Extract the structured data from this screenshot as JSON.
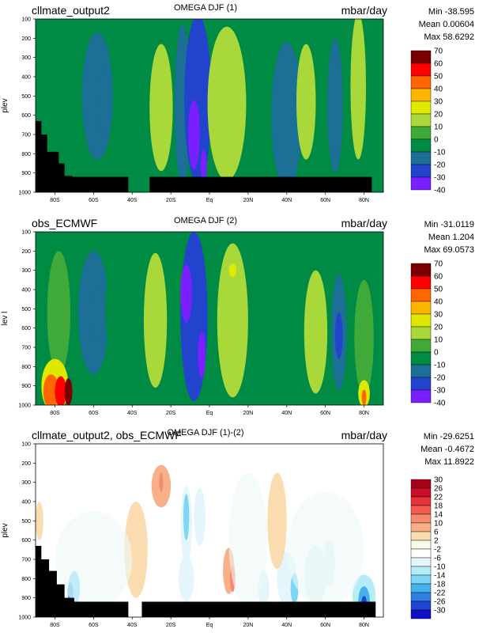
{
  "chart_data": [
    {
      "type": "contour",
      "title": "OMEGA DJF (1)",
      "case_name": "cllmate_output2",
      "units": "mbar/day",
      "stats": {
        "min": "Min -38.595",
        "mean": "Mean 0.00604",
        "max": "Max 58.6292"
      },
      "ylabel": "plev",
      "y_ticks": [
        "100",
        "200",
        "300",
        "400",
        "500",
        "600",
        "700",
        "800",
        "900",
        "1000"
      ],
      "x_ticks": [
        "80S",
        "60S",
        "40S",
        "20S",
        "Eq",
        "20N",
        "40N",
        "60N",
        "80N"
      ],
      "colorbar_levels": [
        "70",
        "60",
        "50",
        "40",
        "30",
        "20",
        "10",
        "0",
        "-10",
        "-20",
        "-30",
        "-40"
      ],
      "colors": [
        "#7a0000",
        "#ff0000",
        "#ff6600",
        "#ffb400",
        "#dfe800",
        "#a8d83a",
        "#3faa3a",
        "#008b45",
        "#1c6f95",
        "#2244cc",
        "#7a1fff"
      ],
      "regions": [
        {
          "band": "80S–70S",
          "value": 0
        },
        {
          "band": "70S–50S",
          "value": -12
        },
        {
          "band": "30S–20S",
          "value": 12
        },
        {
          "band": "12S–0",
          "value": -28
        },
        {
          "band": "8S",
          "value": -38.6
        },
        {
          "band": "8N–15N",
          "value": 18
        },
        {
          "band": "45N–55N",
          "value": 12
        },
        {
          "band": "63N–68N",
          "value": -15
        }
      ]
    },
    {
      "type": "contour",
      "title": "OMEGA DJF (2)",
      "case_name": "obs_ECMWF",
      "units": "mbar/day",
      "stats": {
        "min": "Min -31.0119",
        "mean": "Mean 1.204",
        "max": "Max 69.0573"
      },
      "ylabel": "lev l",
      "y_ticks": [
        "100",
        "200",
        "300",
        "400",
        "500",
        "600",
        "700",
        "800",
        "900",
        "1000"
      ],
      "x_ticks": [
        "80S",
        "60S",
        "40S",
        "20S",
        "Eq",
        "20N",
        "40N",
        "60N",
        "80N"
      ],
      "colorbar_levels": [
        "70",
        "60",
        "50",
        "40",
        "30",
        "20",
        "10",
        "0",
        "-10",
        "-20",
        "-30",
        "-40"
      ],
      "colors": [
        "#7a0000",
        "#ff0000",
        "#ff6600",
        "#ffb400",
        "#dfe800",
        "#a8d83a",
        "#3faa3a",
        "#008b45",
        "#1c6f95",
        "#2244cc",
        "#7a1fff"
      ],
      "regions": [
        {
          "band": "85S–70S, 900–1000",
          "value": 69
        },
        {
          "band": "70S–55S",
          "value": -12
        },
        {
          "band": "30S–20S",
          "value": 12
        },
        {
          "band": "12S–0",
          "value": -25
        },
        {
          "band": "10N–18N",
          "value": 15
        },
        {
          "band": "65N–70N",
          "value": -20
        },
        {
          "band": "80N, 900–1000",
          "value": 45
        }
      ]
    },
    {
      "type": "contour",
      "title": "OMEGA DJF (1)-(2)",
      "case_name": "cllmate_output2, obs_ECMWF",
      "units": "mbar/day",
      "stats": {
        "min": "Min -29.6251",
        "mean": "Mean -0.4672",
        "max": "Max 11.8922"
      },
      "ylabel": "plev",
      "y_ticks": [
        "100",
        "200",
        "300",
        "400",
        "500",
        "600",
        "700",
        "800",
        "900",
        "1000"
      ],
      "x_ticks": [
        "80S",
        "60S",
        "40S",
        "20S",
        "Eq",
        "20N",
        "40N",
        "60N",
        "80N"
      ],
      "colorbar_levels": [
        "30",
        "26",
        "22",
        "18",
        "14",
        "10",
        "6",
        "2",
        "-2",
        "-6",
        "-10",
        "-14",
        "-18",
        "-22",
        "-26",
        "-30"
      ],
      "colors": [
        "#a8001a",
        "#cc0d2a",
        "#e6333a",
        "#f25a52",
        "#f58a6e",
        "#f7b08a",
        "#fbdcb0",
        "#f4fbe6",
        "#ffffff",
        "#e4f6fb",
        "#b6ecf8",
        "#7cd6f4",
        "#45b0ec",
        "#2e7fe4",
        "#1f45d4",
        "#1010c4"
      ],
      "regions": [
        {
          "band": "28S, 300 hPa",
          "value": 10
        },
        {
          "band": "12S, 500 hPa",
          "value": -14
        },
        {
          "band": "12N, 800 hPa",
          "value": 10
        },
        {
          "band": "40N–50N",
          "value": -10
        },
        {
          "band": "80N, 950 hPa",
          "value": -29.6
        }
      ]
    }
  ]
}
